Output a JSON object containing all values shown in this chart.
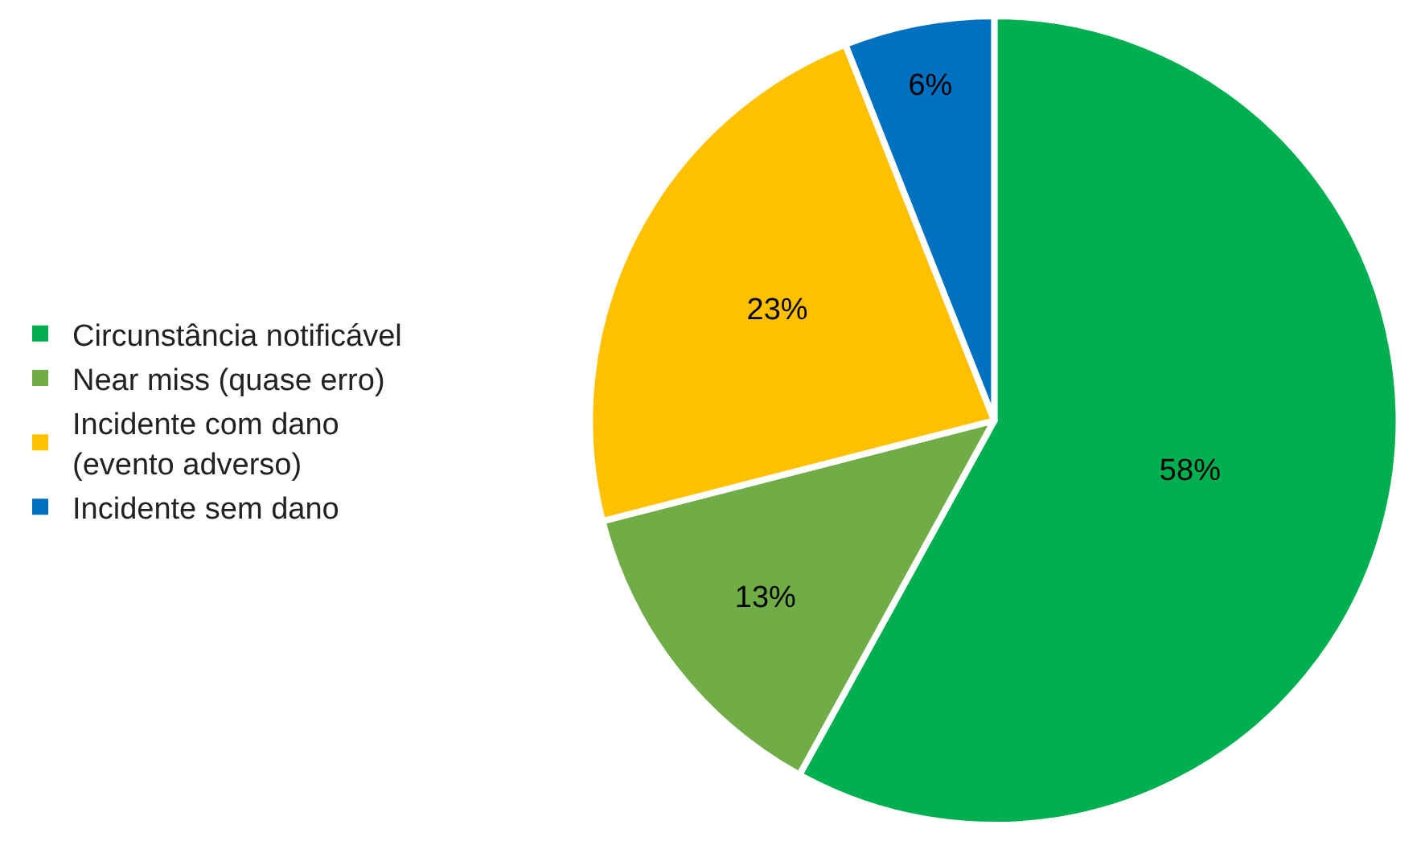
{
  "chart_data": {
    "type": "pie",
    "categories": [
      "Circunstância notificável",
      "Near miss (quase erro)",
      "Incidente com dano\n(evento adverso)",
      "Incidente sem dano"
    ],
    "values": [
      58,
      13,
      23,
      6
    ],
    "colors": [
      "#00b050",
      "#70ad47",
      "#ffc000",
      "#0070c0"
    ],
    "value_labels": [
      "58%",
      "13%",
      "23%",
      "6%"
    ],
    "legend": "left"
  }
}
